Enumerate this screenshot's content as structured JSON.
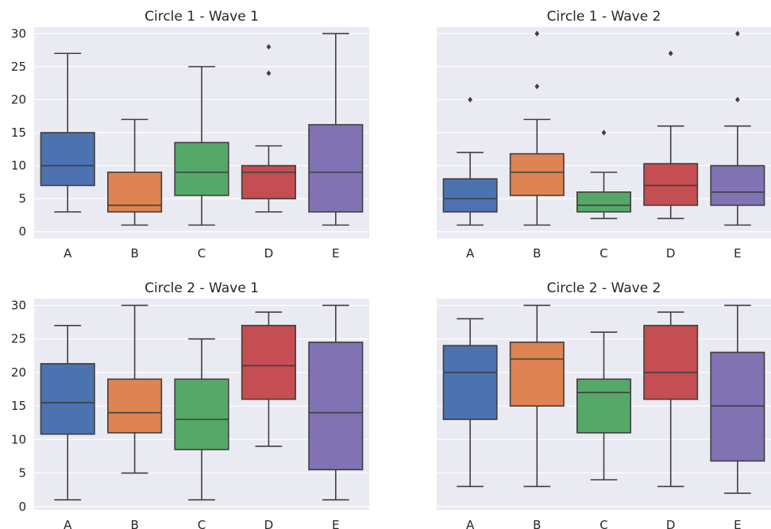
{
  "chart_data": [
    {
      "type": "box",
      "title": "Circle 1 - Wave 1",
      "categories": [
        "A",
        "B",
        "C",
        "D",
        "E"
      ],
      "ylim": [
        -1,
        31
      ],
      "yticks": [
        0,
        5,
        10,
        15,
        20,
        25,
        30
      ],
      "boxes": [
        {
          "category": "A",
          "whisker_low": 3,
          "q1": 7,
          "median": 10,
          "q3": 15,
          "whisker_high": 27,
          "outliers": []
        },
        {
          "category": "B",
          "whisker_low": 1,
          "q1": 3,
          "median": 4,
          "q3": 9,
          "whisker_high": 17,
          "outliers": []
        },
        {
          "category": "C",
          "whisker_low": 1,
          "q1": 5.5,
          "median": 9,
          "q3": 13.5,
          "whisker_high": 25,
          "outliers": []
        },
        {
          "category": "D",
          "whisker_low": 3,
          "q1": 5,
          "median": 9,
          "q3": 10,
          "whisker_high": 13,
          "outliers": [
            24,
            28
          ]
        },
        {
          "category": "E",
          "whisker_low": 1,
          "q1": 3,
          "median": 9,
          "q3": 16.2,
          "whisker_high": 30,
          "outliers": []
        }
      ]
    },
    {
      "type": "box",
      "title": "Circle 1 - Wave 2",
      "categories": [
        "A",
        "B",
        "C",
        "D",
        "E"
      ],
      "ylim": [
        -1,
        31
      ],
      "yticks": [
        0,
        5,
        10,
        15,
        20,
        25,
        30
      ],
      "boxes": [
        {
          "category": "A",
          "whisker_low": 1,
          "q1": 3,
          "median": 5,
          "q3": 8,
          "whisker_high": 12,
          "outliers": [
            20
          ]
        },
        {
          "category": "B",
          "whisker_low": 1,
          "q1": 5.5,
          "median": 9,
          "q3": 11.8,
          "whisker_high": 17,
          "outliers": [
            22,
            30
          ]
        },
        {
          "category": "C",
          "whisker_low": 2,
          "q1": 3,
          "median": 4,
          "q3": 6,
          "whisker_high": 9,
          "outliers": [
            15
          ]
        },
        {
          "category": "D",
          "whisker_low": 2,
          "q1": 4,
          "median": 7,
          "q3": 10.3,
          "whisker_high": 16,
          "outliers": [
            27
          ]
        },
        {
          "category": "E",
          "whisker_low": 1,
          "q1": 4,
          "median": 6,
          "q3": 10,
          "whisker_high": 16,
          "outliers": [
            20,
            30
          ]
        }
      ]
    },
    {
      "type": "box",
      "title": "Circle 2 - Wave 1",
      "categories": [
        "A",
        "B",
        "C",
        "D",
        "E"
      ],
      "ylim": [
        -0.5,
        31
      ],
      "yticks": [
        0,
        5,
        10,
        15,
        20,
        25,
        30
      ],
      "boxes": [
        {
          "category": "A",
          "whisker_low": 1,
          "q1": 10.8,
          "median": 15.5,
          "q3": 21.3,
          "whisker_high": 27,
          "outliers": []
        },
        {
          "category": "B",
          "whisker_low": 5,
          "q1": 11,
          "median": 14,
          "q3": 19,
          "whisker_high": 30,
          "outliers": []
        },
        {
          "category": "C",
          "whisker_low": 1,
          "q1": 8.5,
          "median": 13,
          "q3": 19,
          "whisker_high": 25,
          "outliers": []
        },
        {
          "category": "D",
          "whisker_low": 9,
          "q1": 16,
          "median": 21,
          "q3": 27,
          "whisker_high": 29,
          "outliers": []
        },
        {
          "category": "E",
          "whisker_low": 1,
          "q1": 5.5,
          "median": 14,
          "q3": 24.5,
          "whisker_high": 30,
          "outliers": []
        }
      ]
    },
    {
      "type": "box",
      "title": "Circle 2 - Wave 2",
      "categories": [
        "A",
        "B",
        "C",
        "D",
        "E"
      ],
      "ylim": [
        -0.5,
        31
      ],
      "yticks": [
        0,
        5,
        10,
        15,
        20,
        25,
        30
      ],
      "boxes": [
        {
          "category": "A",
          "whisker_low": 3,
          "q1": 13,
          "median": 20,
          "q3": 24,
          "whisker_high": 28,
          "outliers": []
        },
        {
          "category": "B",
          "whisker_low": 3,
          "q1": 15,
          "median": 22,
          "q3": 24.5,
          "whisker_high": 30,
          "outliers": []
        },
        {
          "category": "C",
          "whisker_low": 4,
          "q1": 11,
          "median": 17,
          "q3": 19,
          "whisker_high": 26,
          "outliers": []
        },
        {
          "category": "D",
          "whisker_low": 3,
          "q1": 16,
          "median": 20,
          "q3": 27,
          "whisker_high": 29,
          "outliers": []
        },
        {
          "category": "E",
          "whisker_low": 2,
          "q1": 6.8,
          "median": 15,
          "q3": 23,
          "whisker_high": 30,
          "outliers": []
        }
      ]
    }
  ],
  "colors": {
    "background": "#eaeaf2",
    "grid": "#ffffff",
    "box_edge": "#3f3f3f",
    "A": "#4c72b0",
    "B": "#dd8452",
    "C": "#55a868",
    "D": "#c44e52",
    "E": "#8172b3"
  }
}
